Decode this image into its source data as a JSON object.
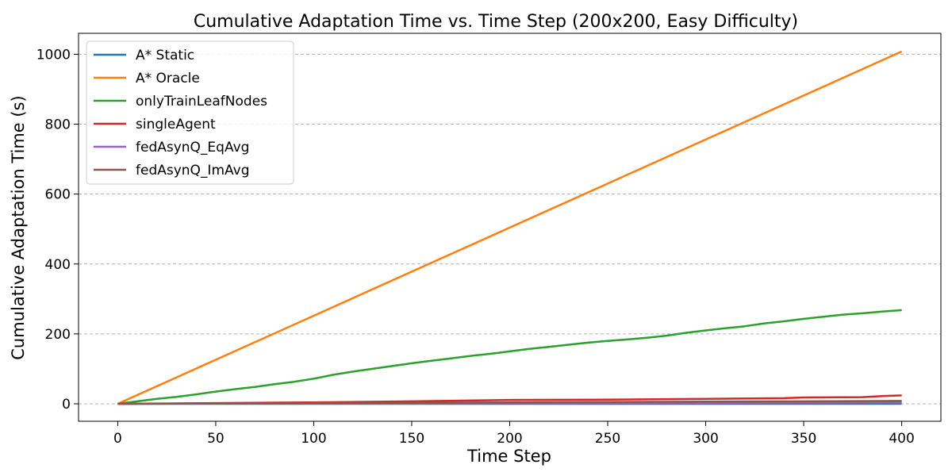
{
  "chart_data": {
    "type": "line",
    "title": "Cumulative Adaptation Time vs. Time Step (200x200, Easy Difficulty)",
    "xlabel": "Time Step",
    "ylabel": "Cumulative Adaptation Time (s)",
    "xlim": [
      -20,
      420
    ],
    "ylim": [
      -50,
      1060
    ],
    "xticks": [
      0,
      50,
      100,
      150,
      200,
      250,
      300,
      350,
      400
    ],
    "yticks": [
      0,
      200,
      400,
      600,
      800,
      1000
    ],
    "grid": "horizontal dashed",
    "legend_position": "top-left",
    "series": [
      {
        "name": "A* Static",
        "color": "#1f77b4",
        "x": [
          0,
          400
        ],
        "y": [
          0,
          0
        ]
      },
      {
        "name": "A* Oracle",
        "color": "#ff7f0e",
        "x": [
          0,
          50,
          100,
          150,
          200,
          250,
          300,
          350,
          400
        ],
        "y": [
          0,
          126,
          252,
          378,
          504,
          630,
          756,
          882,
          1008
        ]
      },
      {
        "name": "onlyTrainLeafNodes",
        "color": "#2ca02c",
        "x": [
          0,
          10,
          20,
          30,
          40,
          50,
          60,
          70,
          80,
          90,
          100,
          110,
          120,
          130,
          140,
          150,
          160,
          170,
          180,
          190,
          200,
          210,
          220,
          230,
          240,
          250,
          260,
          270,
          280,
          290,
          300,
          310,
          320,
          330,
          340,
          350,
          360,
          370,
          380,
          390,
          400
        ],
        "y": [
          0,
          7,
          14,
          20,
          27,
          35,
          42,
          48,
          56,
          63,
          72,
          83,
          92,
          100,
          108,
          116,
          123,
          130,
          137,
          143,
          150,
          157,
          163,
          169,
          175,
          180,
          184,
          189,
          195,
          203,
          210,
          216,
          222,
          230,
          236,
          243,
          249,
          255,
          259,
          264,
          268
        ]
      },
      {
        "name": "singleAgent",
        "color": "#d62728",
        "x": [
          0,
          50,
          100,
          150,
          200,
          250,
          300,
          340,
          350,
          380,
          390,
          400
        ],
        "y": [
          0,
          2,
          4,
          7,
          11,
          12,
          14,
          16,
          18,
          19,
          22,
          24
        ]
      },
      {
        "name": "fedAsynQ_EqAvg",
        "color": "#9467bd",
        "x": [
          0,
          100,
          200,
          300,
          400
        ],
        "y": [
          0,
          1,
          2,
          3,
          4
        ]
      },
      {
        "name": "fedAsynQ_ImAvg",
        "color": "#8c564b",
        "x": [
          0,
          100,
          200,
          300,
          400
        ],
        "y": [
          0,
          2,
          4,
          6,
          8
        ]
      }
    ]
  }
}
